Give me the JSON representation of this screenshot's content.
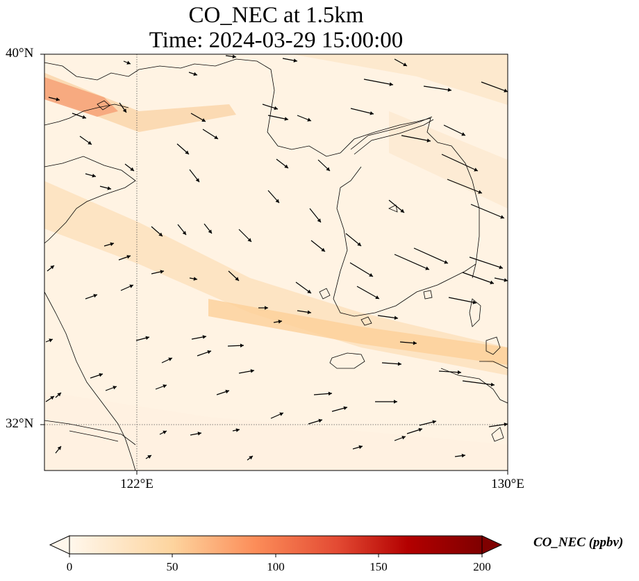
{
  "title": {
    "line1": "CO_NEC at 1.5km",
    "line2": "Time: 2024-03-29 15:00:00"
  },
  "axes": {
    "lat_ticks": [
      "40°N",
      "32°N"
    ],
    "lon_ticks": [
      "122°E",
      "130°E"
    ],
    "lat_range": [
      31,
      40
    ],
    "lon_range": [
      120,
      130
    ],
    "gridlines": "dotted"
  },
  "colorbar": {
    "label": "CO_NEC (ppbv)",
    "ticks": [
      "0",
      "50",
      "100",
      "150",
      "200"
    ],
    "range": [
      0,
      200
    ],
    "colormap": "OrRd",
    "extend": "both"
  },
  "colors": {
    "background_field": "#fff5e6",
    "plume": "#fdd9a8",
    "plume_strong": "#f4a582",
    "coast": "#000000",
    "arrow": "#000000"
  }
}
